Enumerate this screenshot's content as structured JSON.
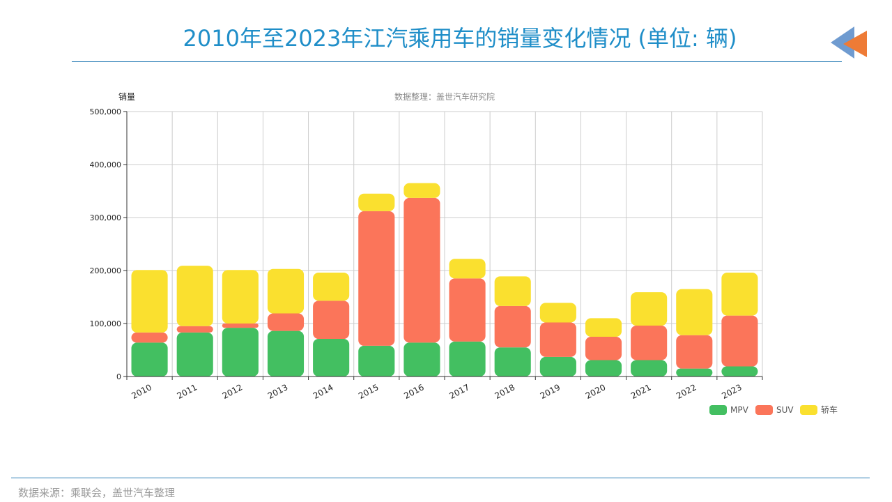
{
  "page": {
    "title": "2010年至2023年江汽乘用车的销量变化情况 (单位: 辆)",
    "footer": "数据来源：乘联会，盖世汽车整理",
    "nav_icon": "back-arrow-icon"
  },
  "colors": {
    "title": "#1f8ec8",
    "rule": "#2a7db5",
    "nav_back": "#6f9bd0",
    "nav_front": "#ee7b36"
  },
  "chart_data": {
    "type": "bar",
    "stacked": true,
    "subtitle": "数据整理：盖世汽车研究院",
    "ylabel": "销量",
    "xlabel": "",
    "ylim": [
      0,
      500000
    ],
    "yticks": [
      0,
      100000,
      200000,
      300000,
      400000,
      500000
    ],
    "ytick_labels": [
      "0",
      "100,000",
      "200,000",
      "300,000",
      "400,000",
      "500,000"
    ],
    "grid": true,
    "legend_position": "bottom-right",
    "categories": [
      "2010",
      "2011",
      "2012",
      "2013",
      "2014",
      "2015",
      "2016",
      "2017",
      "2018",
      "2019",
      "2020",
      "2021",
      "2022",
      "2023"
    ],
    "series": [
      {
        "name": "MPV",
        "color": "#43bf61",
        "values": [
          64000,
          83000,
          92000,
          86000,
          71000,
          58000,
          64000,
          66000,
          55000,
          37000,
          31000,
          31000,
          15000,
          19000
        ]
      },
      {
        "name": "SUV",
        "color": "#fb755a",
        "values": [
          19000,
          12000,
          8000,
          33000,
          72000,
          254000,
          273000,
          119000,
          78000,
          65000,
          44000,
          65000,
          63000,
          96000
        ]
      },
      {
        "name": "轿车",
        "color": "#fae02f",
        "values": [
          118000,
          114000,
          101000,
          84000,
          53000,
          33000,
          28000,
          37000,
          56000,
          37000,
          35000,
          63000,
          87000,
          81000
        ]
      }
    ]
  }
}
